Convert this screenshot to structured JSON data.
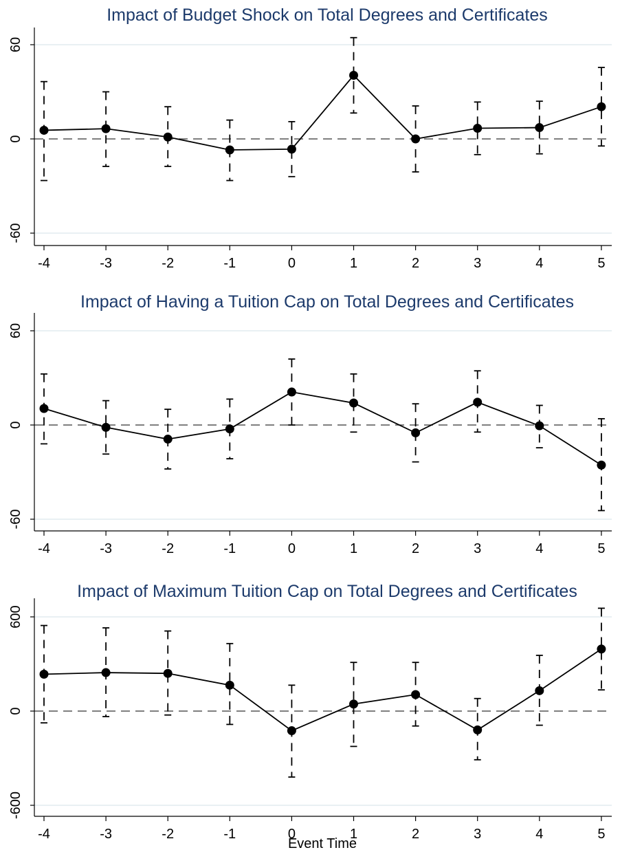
{
  "chart_data": [
    {
      "type": "line",
      "title": "Impact of Budget Shock on Total Degrees and Certificates",
      "xlabel": "",
      "ylabel": "",
      "x": [
        -4,
        -3,
        -2,
        -1,
        0,
        1,
        2,
        3,
        4,
        5
      ],
      "x_tick_labels": [
        "-4",
        "-3",
        "-2",
        "-1",
        "0",
        "1",
        "2",
        "3",
        "4",
        "5"
      ],
      "ylim": [
        -70,
        70
      ],
      "y_ticks": [
        60,
        0,
        -60
      ],
      "y_tick_labels": [
        "60",
        "0",
        "-60"
      ],
      "reference_line": 0,
      "series": [
        {
          "estimates": [
            5.5,
            6.5,
            1.2,
            -7.0,
            -6.5,
            40.5,
            0.0,
            6.8,
            7.2,
            20.5
          ],
          "ci_upper": [
            36.5,
            30.0,
            20.5,
            12.0,
            11.0,
            64.5,
            21.0,
            23.5,
            24.0,
            45.5
          ],
          "ci_lower": [
            -26.5,
            -17.5,
            -17.5,
            -26.5,
            -24.0,
            16.5,
            -21.0,
            -10.0,
            -9.5,
            -4.5
          ]
        }
      ]
    },
    {
      "type": "line",
      "title": "Impact of Having a Tuition Cap on Total Degrees and Certificates",
      "xlabel": "",
      "ylabel": "",
      "x": [
        -4,
        -3,
        -2,
        -1,
        0,
        1,
        2,
        3,
        4,
        5
      ],
      "x_tick_labels": [
        "-4",
        "-3",
        "-2",
        "-1",
        "0",
        "1",
        "2",
        "3",
        "4",
        "5"
      ],
      "ylim": [
        -70,
        70
      ],
      "y_ticks": [
        60,
        0,
        -60
      ],
      "y_tick_labels": [
        "60",
        "0",
        "-60"
      ],
      "reference_line": 0,
      "series": [
        {
          "estimates": [
            10.5,
            -1.5,
            -9.0,
            -2.5,
            21.0,
            14.0,
            -5.0,
            14.5,
            -0.5,
            -25.5
          ],
          "ci_upper": [
            32.5,
            15.5,
            10.0,
            16.5,
            42.0,
            32.5,
            13.5,
            34.5,
            12.5,
            4.0
          ],
          "ci_lower": [
            -12.0,
            -18.5,
            -28.0,
            -21.5,
            0.0,
            -4.5,
            -23.5,
            -4.5,
            -14.5,
            -54.5
          ]
        }
      ]
    },
    {
      "type": "line",
      "title": "Impact of Maximum Tuition Cap on Total Degrees and Certificates",
      "xlabel": "Event Time",
      "ylabel": "",
      "x": [
        -4,
        -3,
        -2,
        -1,
        0,
        1,
        2,
        3,
        4,
        5
      ],
      "x_tick_labels": [
        "-4",
        "-3",
        "-2",
        "-1",
        "0",
        "1",
        "2",
        "3",
        "4",
        "5"
      ],
      "ylim": [
        -700,
        700
      ],
      "y_ticks": [
        600,
        0,
        -600
      ],
      "y_tick_labels": [
        "600",
        "0",
        "-600"
      ],
      "reference_line": 0,
      "series": [
        {
          "estimates": [
            235,
            245,
            240,
            165,
            -125,
            45,
            105,
            -120,
            130,
            395
          ],
          "ci_upper": [
            545,
            530,
            510,
            430,
            165,
            310,
            310,
            80,
            355,
            655
          ],
          "ci_lower": [
            -75,
            -35,
            -25,
            -85,
            -420,
            -225,
            -95,
            -310,
            -90,
            135
          ]
        }
      ]
    }
  ]
}
